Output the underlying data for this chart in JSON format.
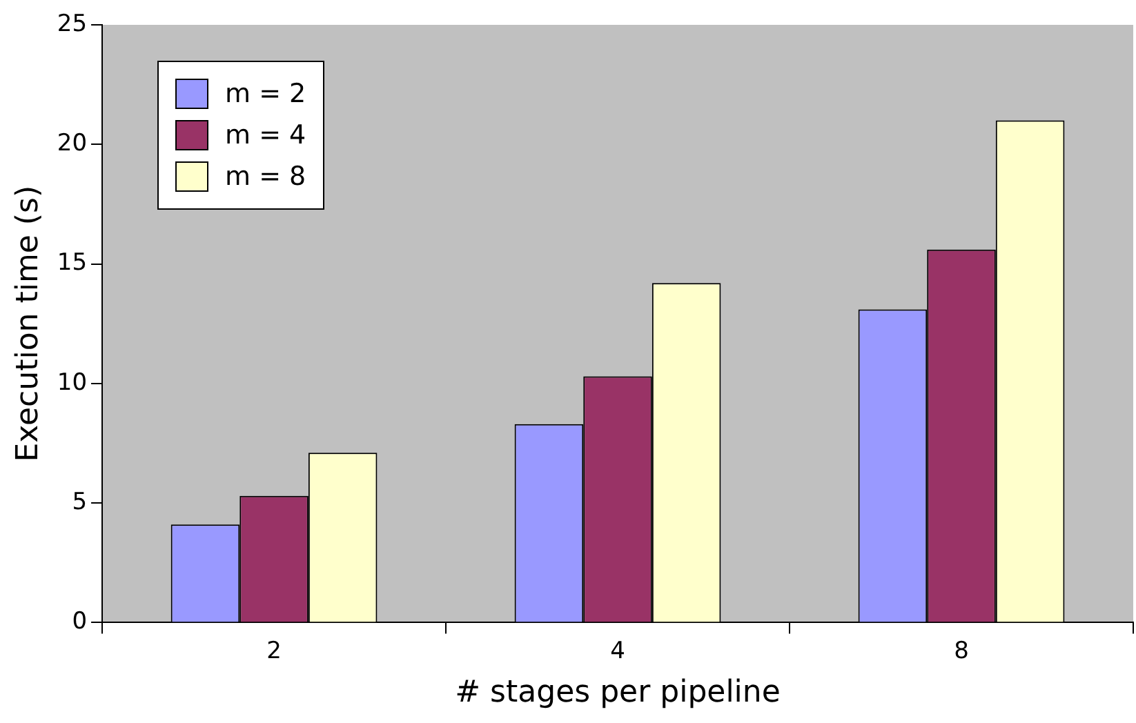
{
  "chart_data": {
    "type": "bar",
    "xlabel": "# stages per pipeline",
    "ylabel": "Execution time (s)",
    "categories": [
      "2",
      "4",
      "8"
    ],
    "series": [
      {
        "name": "m = 2",
        "color": "#9999ff",
        "values": [
          4.1,
          8.3,
          13.1
        ]
      },
      {
        "name": "m = 4",
        "color": "#993366",
        "values": [
          5.3,
          10.3,
          15.6
        ]
      },
      {
        "name": "m = 8",
        "color": "#ffffcc",
        "values": [
          7.1,
          14.2,
          21.0
        ]
      }
    ],
    "ylim": [
      0,
      25
    ],
    "yticks": [
      0,
      5,
      10,
      15,
      20,
      25
    ],
    "grid": false,
    "legend": "top left"
  }
}
